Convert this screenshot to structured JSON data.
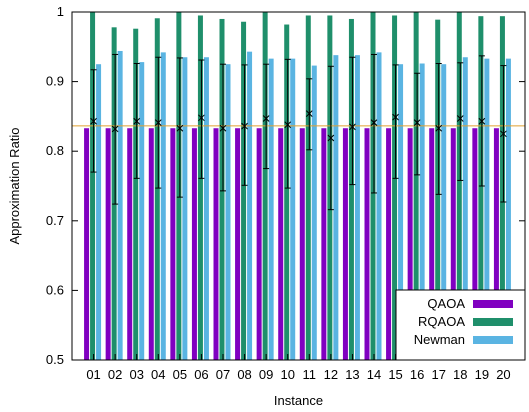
{
  "chart_data": {
    "type": "bar",
    "xlabel": "Instance",
    "ylabel": "Approximation Ratio",
    "ylim": [
      0.5,
      1.0
    ],
    "yticks": [
      0.5,
      0.6,
      0.7,
      0.8,
      0.9,
      1
    ],
    "ytick_labels": [
      "0.5",
      "0.6",
      "0.7",
      "0.8",
      "0.9",
      "1"
    ],
    "categories": [
      "01",
      "02",
      "03",
      "04",
      "05",
      "06",
      "07",
      "08",
      "09",
      "10",
      "11",
      "12",
      "13",
      "14",
      "15",
      "16",
      "17",
      "18",
      "19",
      "20"
    ],
    "series": [
      {
        "name": "QAOA",
        "color": "#8000c0",
        "values": [
          0.833,
          0.833,
          0.833,
          0.833,
          0.833,
          0.833,
          0.833,
          0.833,
          0.833,
          0.833,
          0.833,
          0.833,
          0.833,
          0.833,
          0.833,
          0.833,
          0.833,
          0.833,
          0.833,
          0.833
        ]
      },
      {
        "name": "RQAOA",
        "color": "#1f8f6b",
        "values": [
          1.0,
          0.978,
          0.976,
          0.991,
          1.0,
          0.995,
          0.99,
          0.986,
          1.0,
          0.982,
          0.995,
          0.995,
          0.99,
          1.0,
          0.995,
          1.0,
          0.989,
          1.0,
          0.994,
          0.994
        ]
      },
      {
        "name": "Newman",
        "color": "#5ab4e2",
        "values": [
          0.925,
          0.944,
          0.928,
          0.942,
          0.935,
          0.935,
          0.925,
          0.943,
          0.933,
          0.933,
          0.923,
          0.938,
          0.938,
          0.942,
          0.925,
          0.926,
          0.925,
          0.935,
          0.933,
          0.933
        ]
      }
    ],
    "markers": {
      "values": [
        0.843,
        0.832,
        0.843,
        0.841,
        0.833,
        0.848,
        0.833,
        0.836,
        0.847,
        0.838,
        0.854,
        0.819,
        0.835,
        0.841,
        0.849,
        0.841,
        0.833,
        0.847,
        0.843,
        0.825
      ],
      "err_low": [
        0.77,
        0.724,
        0.761,
        0.747,
        0.734,
        0.761,
        0.743,
        0.751,
        0.775,
        0.747,
        0.802,
        0.716,
        0.752,
        0.74,
        0.761,
        0.766,
        0.738,
        0.758,
        0.75,
        0.727
      ],
      "err_high": [
        0.917,
        0.939,
        0.926,
        0.935,
        0.934,
        0.931,
        0.925,
        0.924,
        0.925,
        0.932,
        0.904,
        0.922,
        0.935,
        0.939,
        0.924,
        0.912,
        0.926,
        0.927,
        0.937,
        0.923
      ]
    },
    "reference_line": {
      "value": 0.8364,
      "color": "#e0a030"
    },
    "legend_position": "bottom-right",
    "grid": false
  }
}
